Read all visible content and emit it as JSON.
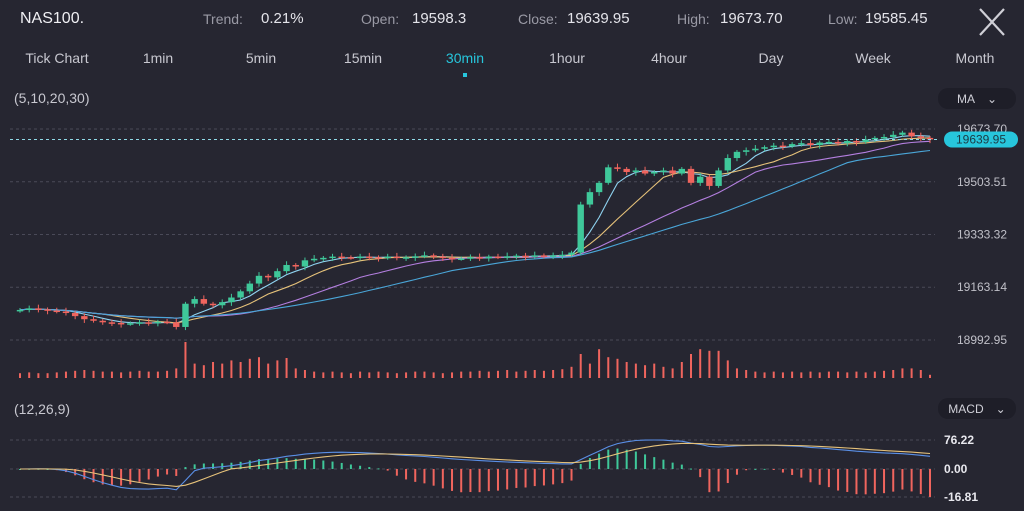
{
  "header": {
    "symbol": "NAS100.",
    "trend_label": "Trend:",
    "trend_value": "0.21%",
    "open_label": "Open:",
    "open_value": "19598.3",
    "close_label": "Close:",
    "close_value": "19639.95",
    "high_label": "High:",
    "high_value": "19673.70",
    "low_label": "Low:",
    "low_value": "19585.45",
    "close_icon": "close-x-icon"
  },
  "tabs": [
    {
      "label": "Tick Chart"
    },
    {
      "label": "1min"
    },
    {
      "label": "5min"
    },
    {
      "label": "15min"
    },
    {
      "label": "30min",
      "active": true
    },
    {
      "label": "1hour"
    },
    {
      "label": "4hour"
    },
    {
      "label": "Day"
    },
    {
      "label": "Week"
    },
    {
      "label": "Month"
    }
  ],
  "main_panel": {
    "params": "(5,10,20,30)",
    "indicator": "MA",
    "chevron_icon": "chevron-down-icon"
  },
  "macd_panel": {
    "params": "(12,26,9)",
    "indicator": "MACD",
    "chevron_icon": "chevron-down-icon"
  },
  "colors": {
    "bg": "#262631",
    "up": "#3fc89a",
    "down": "#f0655e",
    "accent": "#27c6dc",
    "ma5": "#8fd3f0",
    "ma10": "#e6c27a",
    "ma20": "#b47fe0",
    "ma30": "#4aa6d8",
    "dif": "#5a8fe6",
    "dea": "#e6c27a"
  },
  "chart_data": {
    "type": "candlestick",
    "timeframe": "30min",
    "price_ticks": [
      "19673.70",
      "19503.51",
      "19333.32",
      "19163.14",
      "18992.95"
    ],
    "price_tick_values": [
      19673.7,
      19503.51,
      19333.32,
      19163.14,
      18992.95
    ],
    "current_price": "19639.95",
    "ma_periods": [
      5,
      10,
      20,
      30
    ],
    "close": [
      19090,
      19095,
      19092,
      19088,
      19085,
      19080,
      19070,
      19060,
      19055,
      19050,
      19048,
      19045,
      19047,
      19050,
      19049,
      19052,
      19050,
      19035,
      19110,
      19125,
      19110,
      19105,
      19115,
      19130,
      19150,
      19175,
      19200,
      19195,
      19215,
      19235,
      19230,
      19250,
      19255,
      19258,
      19262,
      19260,
      19258,
      19262,
      19260,
      19258,
      19262,
      19258,
      19260,
      19263,
      19266,
      19262,
      19258,
      19255,
      19256,
      19260,
      19258,
      19262,
      19260,
      19263,
      19265,
      19262,
      19266,
      19264,
      19266,
      19268,
      19275,
      19430,
      19470,
      19500,
      19550,
      19545,
      19535,
      19540,
      19530,
      19535,
      19540,
      19530,
      19545,
      19500,
      19520,
      19490,
      19540,
      19580,
      19600,
      19605,
      19610,
      19615,
      19620,
      19618,
      19625,
      19628,
      19622,
      19630,
      19632,
      19628,
      19635,
      19632,
      19640,
      19645,
      19648,
      19655,
      19662,
      19650,
      19645,
      19640
    ],
    "volume": [
      6,
      7,
      6,
      6,
      7,
      8,
      9,
      10,
      9,
      8,
      8,
      7,
      8,
      9,
      8,
      8,
      9,
      12,
      45,
      18,
      16,
      20,
      18,
      22,
      20,
      24,
      26,
      18,
      22,
      25,
      12,
      10,
      8,
      7,
      8,
      7,
      6,
      8,
      7,
      8,
      7,
      6,
      7,
      8,
      8,
      7,
      6,
      7,
      8,
      8,
      9,
      8,
      9,
      10,
      8,
      9,
      10,
      9,
      10,
      11,
      14,
      30,
      18,
      36,
      26,
      24,
      20,
      18,
      16,
      18,
      14,
      12,
      20,
      30,
      36,
      34,
      34,
      22,
      12,
      10,
      8,
      7,
      8,
      7,
      8,
      7,
      8,
      7,
      8,
      8,
      7,
      8,
      7,
      8,
      9,
      10,
      12,
      12,
      10,
      4
    ],
    "macd_ticks": [
      "76.22",
      "0.00",
      "-16.81"
    ],
    "macd_tick_values": [
      76.22,
      0.0,
      -16.81
    ]
  }
}
